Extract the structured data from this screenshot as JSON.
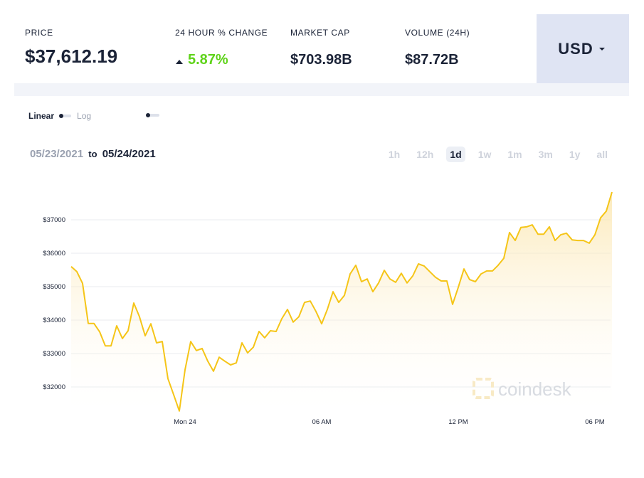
{
  "header": {
    "price_label": "PRICE",
    "price": "$37,612.19",
    "change_label": "24 HOUR % CHANGE",
    "change": "5.87%",
    "cap_label": "MARKET CAP",
    "cap": "$703.98B",
    "volume_label": "VOLUME (24H)",
    "volume": "$87.72B",
    "currency": "USD"
  },
  "controls": {
    "linear": "Linear",
    "log": "Log",
    "from": "05/23/2021",
    "to_word": "to",
    "to": "05/24/2021",
    "ranges": [
      "1h",
      "12h",
      "1d",
      "1w",
      "1m",
      "3m",
      "1y",
      "all"
    ],
    "active_range": "1d"
  },
  "chart_data": {
    "type": "line",
    "color": "#f5c518",
    "grid": true,
    "watermark": "coindesk",
    "categories": [
      null,
      null,
      null,
      null,
      null,
      null,
      null,
      null,
      null,
      null,
      null,
      null,
      null,
      null,
      null,
      null,
      null,
      null,
      null,
      null,
      "Mon 24",
      null,
      null,
      null,
      null,
      null,
      null,
      null,
      null,
      null,
      null,
      null,
      null,
      null,
      null,
      null,
      null,
      null,
      null,
      null,
      null,
      null,
      null,
      null,
      "06 AM",
      null,
      null,
      null,
      null,
      null,
      null,
      null,
      null,
      null,
      null,
      null,
      null,
      null,
      null,
      null,
      null,
      null,
      null,
      null,
      null,
      null,
      null,
      null,
      "12 PM",
      null,
      null,
      null,
      null,
      null,
      null,
      null,
      null,
      null,
      null,
      null,
      null,
      null,
      null,
      null,
      null,
      null,
      null,
      null,
      null,
      null,
      null,
      null,
      "06 PM",
      null,
      null,
      null
    ],
    "values": [
      35600,
      35450,
      35100,
      33900,
      33900,
      33650,
      33230,
      33230,
      33830,
      33450,
      33680,
      34510,
      34100,
      33530,
      33890,
      33320,
      33360,
      32250,
      31770,
      31280,
      32510,
      33360,
      33090,
      33150,
      32770,
      32470,
      32890,
      32770,
      32660,
      32720,
      33320,
      33020,
      33190,
      33660,
      33470,
      33680,
      33660,
      34040,
      34320,
      33940,
      34100,
      34530,
      34570,
      34260,
      33890,
      34320,
      34850,
      34530,
      34740,
      35380,
      35640,
      35150,
      35230,
      34850,
      35110,
      35490,
      35230,
      35130,
      35400,
      35110,
      35320,
      35680,
      35620,
      35450,
      35280,
      35170,
      35170,
      34470,
      34980,
      35530,
      35210,
      35150,
      35380,
      35470,
      35470,
      35640,
      35850,
      36620,
      36380,
      36770,
      36790,
      36850,
      36570,
      36570,
      36790,
      36380,
      36550,
      36600,
      36400,
      36380,
      36380,
      36300,
      36550,
      37060,
      37260,
      37830
    ],
    "ylim": [
      31000,
      38200
    ],
    "yticks": [
      {
        "value": 32000,
        "label": "$32000"
      },
      {
        "value": 33000,
        "label": "$33000"
      },
      {
        "value": 34000,
        "label": "$34000"
      },
      {
        "value": 35000,
        "label": "$35000"
      },
      {
        "value": 36000,
        "label": "$36000"
      },
      {
        "value": 37000,
        "label": "$37000"
      }
    ]
  }
}
